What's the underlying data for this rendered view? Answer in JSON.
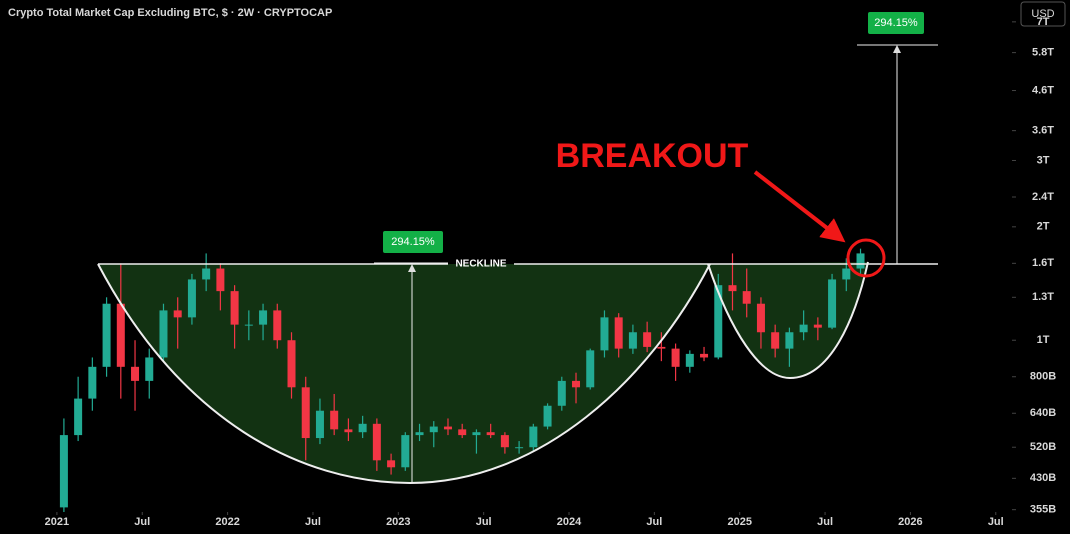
{
  "chart_data": {
    "type": "candlestick",
    "title": "Crypto Total Market Cap Excluding BTC, $ · 2W · CRYPTOCAP",
    "currency": "USD",
    "annotations": {
      "neckline": "NECKLINE",
      "breakout": "BREAKOUT",
      "measured_move": [
        "294.15%",
        "294.15%"
      ]
    },
    "log_scale": true,
    "up_color": "#22ab94",
    "down_color": "#f23645",
    "x": [
      "2021-01",
      "2021-02",
      "2021-03",
      "2021-04",
      "2021-05",
      "2021-06",
      "2021-07",
      "2021-08",
      "2021-09",
      "2021-10",
      "2021-11",
      "2021-12",
      "2022-01",
      "2022-02",
      "2022-03",
      "2022-04",
      "2022-05",
      "2022-06",
      "2022-07",
      "2022-08",
      "2022-09",
      "2022-10",
      "2022-11",
      "2022-12",
      "2023-01",
      "2023-02",
      "2023-03",
      "2023-04",
      "2023-05",
      "2023-06",
      "2023-07",
      "2023-08",
      "2023-09",
      "2023-10",
      "2023-11",
      "2023-12",
      "2024-01",
      "2024-02",
      "2024-03",
      "2024-04",
      "2024-05",
      "2024-06",
      "2024-07",
      "2024-08",
      "2024-09",
      "2024-10",
      "2024-11",
      "2024-12",
      "2025-01",
      "2025-02",
      "2025-03",
      "2025-04",
      "2025-05",
      "2025-06",
      "2025-07",
      "2025-08",
      "2025-09"
    ],
    "open": [
      360,
      560,
      700,
      850,
      1250,
      850,
      780,
      900,
      1200,
      1150,
      1450,
      1550,
      1350,
      1100,
      1100,
      1200,
      1000,
      750,
      550,
      650,
      580,
      570,
      600,
      480,
      460,
      560,
      570,
      590,
      580,
      560,
      570,
      560,
      520,
      520,
      590,
      670,
      780,
      750,
      940,
      1150,
      950,
      1050,
      960,
      950,
      850,
      920,
      900,
      1400,
      1350,
      1250,
      1050,
      950,
      1050,
      1100,
      1080,
      1450,
      1550
    ],
    "high": [
      620,
      800,
      900,
      1300,
      1600,
      1000,
      950,
      1250,
      1300,
      1500,
      1700,
      1600,
      1400,
      1200,
      1250,
      1250,
      1050,
      800,
      700,
      720,
      620,
      630,
      620,
      500,
      570,
      600,
      610,
      620,
      600,
      580,
      600,
      570,
      540,
      600,
      680,
      800,
      820,
      950,
      1200,
      1180,
      1100,
      1120,
      1050,
      980,
      940,
      960,
      1500,
      1700,
      1550,
      1300,
      1100,
      1080,
      1200,
      1150,
      1500,
      1650,
      1750
    ],
    "low": [
      350,
      540,
      650,
      800,
      700,
      650,
      700,
      880,
      950,
      1100,
      1350,
      1200,
      950,
      1000,
      1000,
      950,
      700,
      480,
      530,
      560,
      540,
      550,
      450,
      440,
      450,
      540,
      520,
      560,
      550,
      500,
      550,
      500,
      500,
      510,
      580,
      650,
      680,
      740,
      900,
      900,
      920,
      930,
      880,
      780,
      820,
      880,
      890,
      1200,
      1150,
      950,
      900,
      850,
      1000,
      1000,
      1070,
      1350,
      1500
    ],
    "close": [
      560,
      700,
      850,
      1250,
      850,
      780,
      900,
      1200,
      1150,
      1450,
      1550,
      1350,
      1100,
      1100,
      1200,
      1000,
      750,
      550,
      650,
      580,
      570,
      600,
      480,
      460,
      560,
      570,
      590,
      580,
      560,
      570,
      560,
      520,
      520,
      590,
      670,
      780,
      750,
      940,
      1150,
      950,
      1050,
      960,
      950,
      850,
      920,
      900,
      1400,
      1350,
      1250,
      1050,
      950,
      1050,
      1100,
      1080,
      1450,
      1550,
      1700
    ],
    "xlim": [
      "2020-09",
      "2026-08"
    ],
    "xticks": [
      {
        "value": "2021-01",
        "label": "2021"
      },
      {
        "value": "2021-07",
        "label": "Jul"
      },
      {
        "value": "2022-01",
        "label": "2022"
      },
      {
        "value": "2022-07",
        "label": "Jul"
      },
      {
        "value": "2023-01",
        "label": "2023"
      },
      {
        "value": "2023-07",
        "label": "Jul"
      },
      {
        "value": "2024-01",
        "label": "2024"
      },
      {
        "value": "2024-07",
        "label": "Jul"
      },
      {
        "value": "2025-01",
        "label": "2025"
      },
      {
        "value": "2025-07",
        "label": "Jul"
      },
      {
        "value": "2026-01",
        "label": "2026"
      },
      {
        "value": "2026-07",
        "label": "Jul"
      }
    ],
    "ylim": [
      350,
      8000
    ],
    "yticks": [
      {
        "value": 355,
        "label": "355B"
      },
      {
        "value": 430,
        "label": "430B"
      },
      {
        "value": 520,
        "label": "520B"
      },
      {
        "value": 640,
        "label": "640B"
      },
      {
        "value": 800,
        "label": "800B"
      },
      {
        "value": 1000,
        "label": "1T"
      },
      {
        "value": 1300,
        "label": "1.3T"
      },
      {
        "value": 1600,
        "label": "1.6T"
      },
      {
        "value": 2000,
        "label": "2T"
      },
      {
        "value": 2400,
        "label": "2.4T"
      },
      {
        "value": 3000,
        "label": "3T"
      },
      {
        "value": 3600,
        "label": "3.6T"
      },
      {
        "value": 4600,
        "label": "4.6T"
      },
      {
        "value": 5800,
        "label": "5.8T"
      },
      {
        "value": 7000,
        "label": "7T"
      }
    ]
  }
}
